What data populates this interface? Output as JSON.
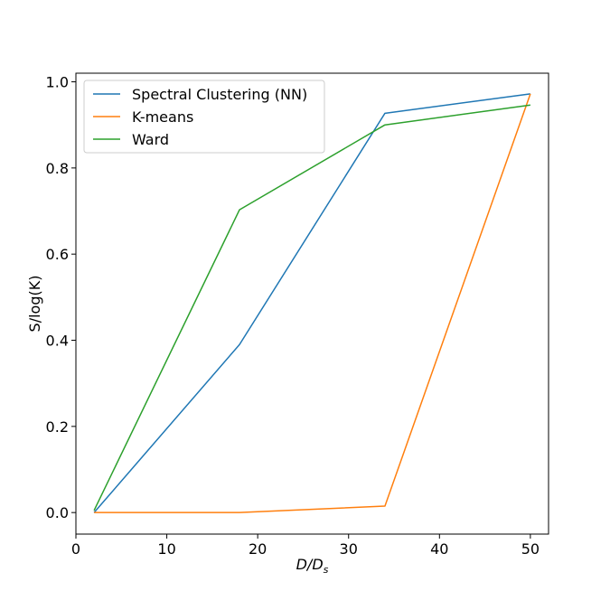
{
  "chart_data": {
    "type": "line",
    "title": "",
    "xlabel": {
      "main": "D/D",
      "sub": "s"
    },
    "ylabel": "S/log(K)",
    "xlim": [
      0,
      52
    ],
    "ylim": [
      -0.05,
      1.02
    ],
    "xticks": [
      0,
      10,
      20,
      30,
      40,
      50
    ],
    "yticks": [
      0.0,
      0.2,
      0.4,
      0.6,
      0.8,
      1.0
    ],
    "xtick_labels": [
      "0",
      "10",
      "20",
      "30",
      "40",
      "50"
    ],
    "ytick_labels": [
      "0.0",
      "0.2",
      "0.4",
      "0.6",
      "0.8",
      "1.0"
    ],
    "grid": false,
    "legend_position": "top-left",
    "x": [
      2,
      18,
      34,
      50
    ],
    "series": [
      {
        "name": "Spectral Clustering (NN)",
        "color": "#1f77b4",
        "values": [
          0.0,
          0.39,
          0.927,
          0.972
        ]
      },
      {
        "name": "K-means",
        "color": "#ff7f0e",
        "values": [
          0.0,
          0.0,
          0.015,
          0.972
        ]
      },
      {
        "name": "Ward",
        "color": "#2ca02c",
        "values": [
          0.005,
          0.703,
          0.9,
          0.946
        ]
      }
    ]
  }
}
